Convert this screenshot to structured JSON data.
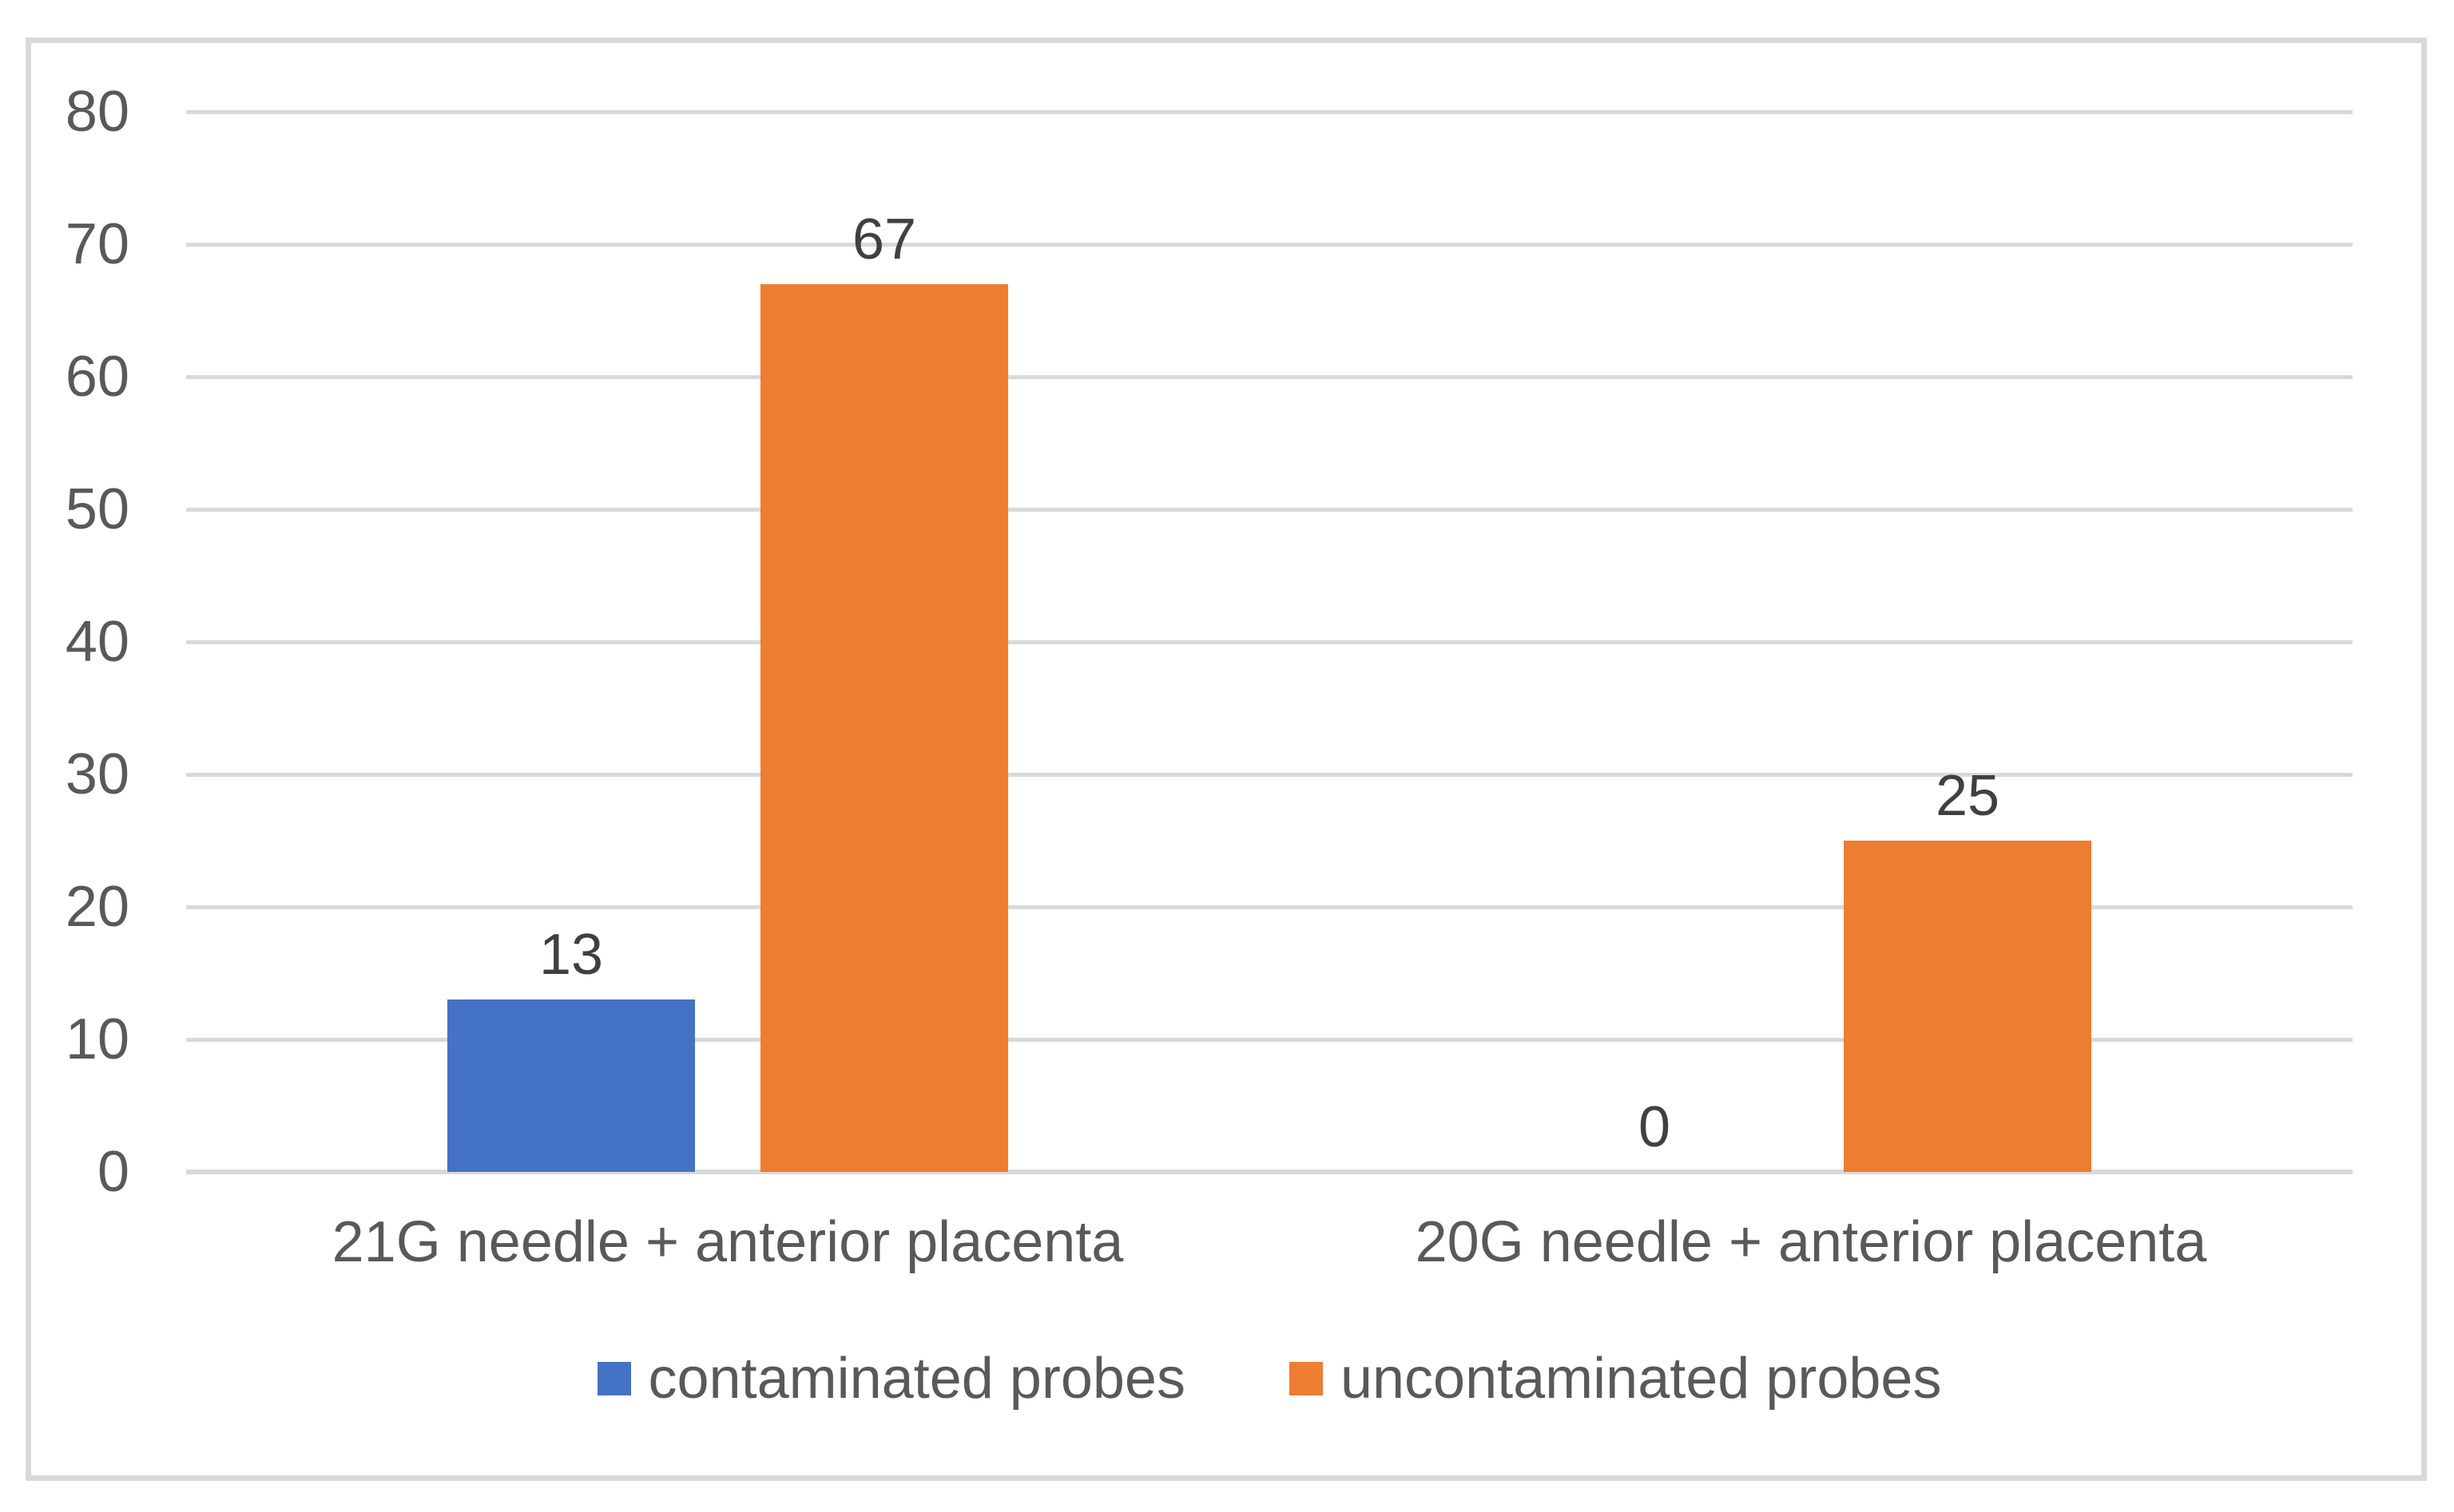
{
  "chart_data": {
    "type": "bar",
    "title": "",
    "xlabel": "",
    "ylabel": "",
    "categories": [
      "21G needle + anterior placenta",
      "20G needle + anterior placenta"
    ],
    "series": [
      {
        "name": "contaminated probes",
        "color": "#4472C4",
        "values": [
          13,
          0
        ]
      },
      {
        "name": "uncontaminated probes",
        "color": "#ED7D31",
        "values": [
          67,
          25
        ]
      }
    ],
    "data_labels": [
      [
        13,
        0
      ],
      [
        67,
        25
      ]
    ],
    "ylim": [
      0,
      80
    ],
    "yticks": [
      0,
      10,
      20,
      30,
      40,
      50,
      60,
      70,
      80
    ],
    "grid": true,
    "legend_position": "bottom",
    "colors": {
      "gridline": "#d9d9d9",
      "frame_border": "#d9d9d9",
      "axis_text": "#595959",
      "data_label_text": "#404040"
    }
  }
}
